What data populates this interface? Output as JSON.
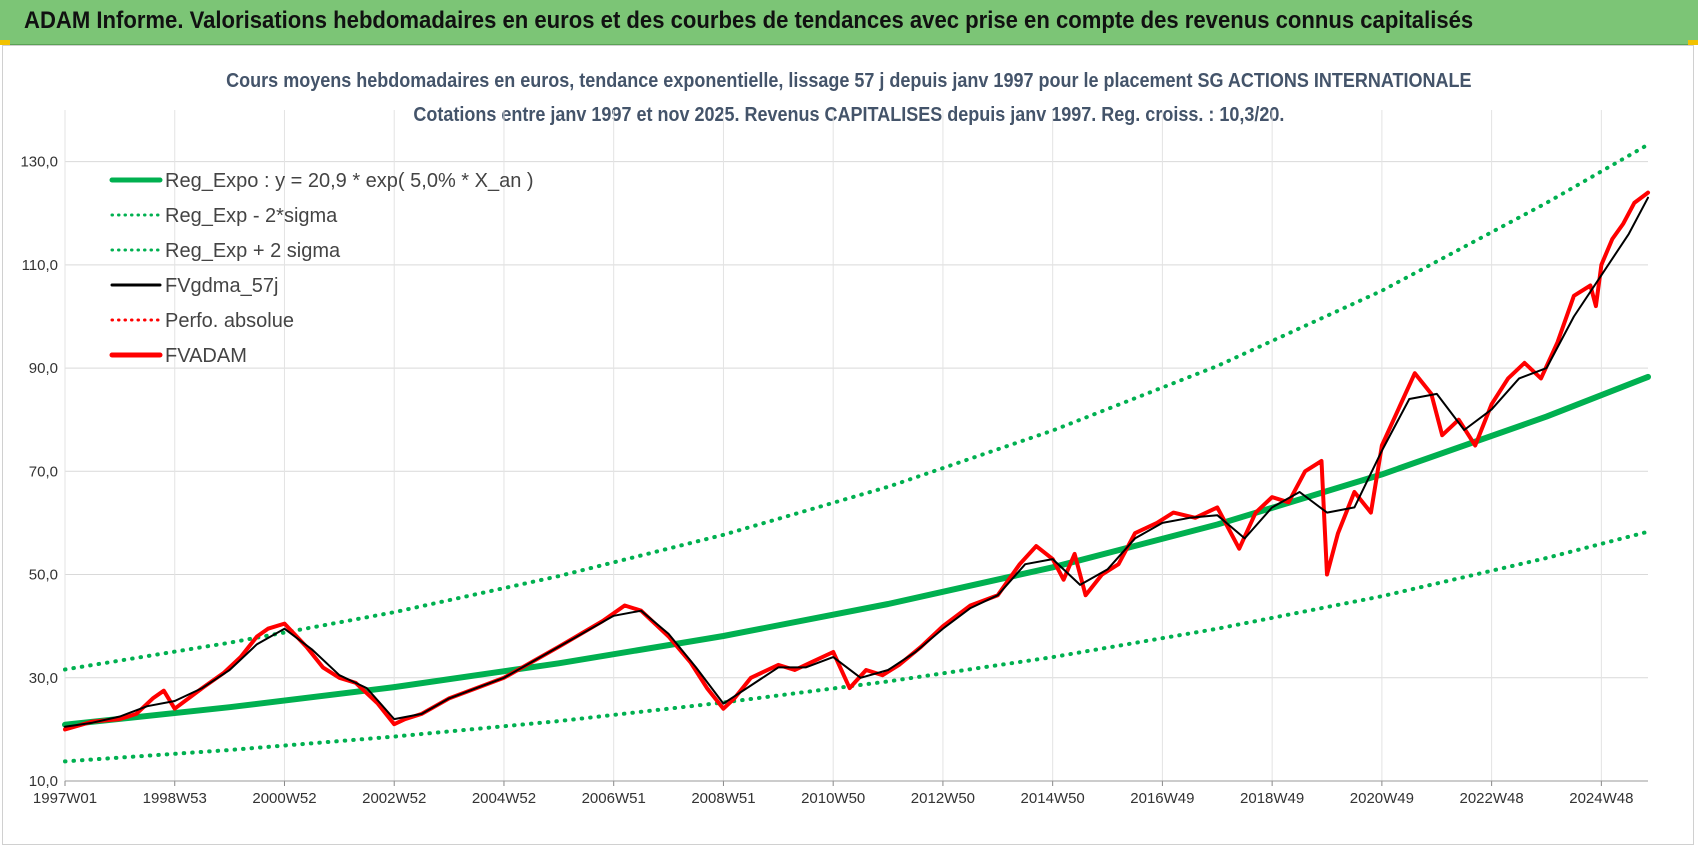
{
  "header": {
    "banner_title": "ADAM Informe. Valorisations hebdomadaires en euros et des courbes de tendances avec prise en compte des revenus connus capitalisés"
  },
  "colors": {
    "banner": "#7cc576",
    "reg": "#00b050",
    "smooth": "#000000",
    "price": "#ff0000",
    "perfo": "#ff0000",
    "title": "#44546a"
  },
  "chart_data": {
    "type": "line",
    "title": "Cours moyens hebdomadaires en euros, tendance exponentielle, lissage 57 j depuis janv 1997  pour le placement SG ACTIONS INTERNATIONALE",
    "subtitle": "Cotations entre janv 1997 et nov 2025. Revenus CAPITALISES depuis janv 1997. Reg. croiss. : 10,3/20.",
    "ylim": [
      10,
      140
    ],
    "xlim": [
      1997.0,
      2025.85
    ],
    "y_ticks": [
      "130,0",
      "110,0",
      "90,0",
      "70,0",
      "50,0",
      "30,0",
      "10,0"
    ],
    "y_tick_values": [
      130,
      110,
      90,
      70,
      50,
      30,
      10
    ],
    "x_ticks": [
      "1997W01",
      "1998W53",
      "2000W52",
      "2002W52",
      "2004W52",
      "2006W51",
      "2008W51",
      "2010W50",
      "2012W50",
      "2014W50",
      "2016W49",
      "2018W49",
      "2020W49",
      "2022W48",
      "2024W48"
    ],
    "x_tick_values": [
      1997.0,
      1999.0,
      2001.0,
      2003.0,
      2005.0,
      2007.0,
      2009.0,
      2011.0,
      2013.0,
      2015.0,
      2017.0,
      2019.0,
      2021.0,
      2023.0,
      2025.0
    ],
    "legend": [
      {
        "key": "reg",
        "label": "Reg_Expo : y = 20,9 * exp( 5,0% *  X_an )",
        "style": "solid-thick",
        "color": "#00b050"
      },
      {
        "key": "minus",
        "label": "Reg_Exp - 2*sigma",
        "style": "dotted",
        "color": "#00b050"
      },
      {
        "key": "plus",
        "label": "Reg_Exp + 2 sigma",
        "style": "dotted",
        "color": "#00b050"
      },
      {
        "key": "smooth",
        "label": "FVgdma_57j",
        "style": "solid",
        "color": "#000000"
      },
      {
        "key": "perfo",
        "label": "Perfo. absolue",
        "style": "dotted",
        "color": "#ff0000"
      },
      {
        "key": "price",
        "label": "FVADAM",
        "style": "solid-thick",
        "color": "#ff0000"
      }
    ],
    "series": [
      {
        "name": "Reg_Expo",
        "x": [
          1997.0,
          2000.0,
          2003.0,
          2006.0,
          2009.0,
          2012.0,
          2015.0,
          2018.0,
          2021.0,
          2024.0,
          2025.85
        ],
        "values": [
          20.9,
          24.3,
          28.2,
          32.8,
          38.1,
          44.3,
          51.4,
          59.7,
          69.4,
          80.6,
          88.3
        ]
      },
      {
        "name": "Reg_Exp - 2*sigma",
        "x": [
          1997.0,
          2000.0,
          2003.0,
          2006.0,
          2009.0,
          2012.0,
          2015.0,
          2018.0,
          2021.0,
          2024.0,
          2025.85
        ],
        "values": [
          13.8,
          16.0,
          18.6,
          21.6,
          25.2,
          29.3,
          34.0,
          39.5,
          45.8,
          53.2,
          58.3
        ]
      },
      {
        "name": "Reg_Exp + 2 sigma",
        "x": [
          1997.0,
          2000.0,
          2003.0,
          2006.0,
          2009.0,
          2012.0,
          2015.0,
          2018.0,
          2021.0,
          2024.0,
          2025.85
        ],
        "values": [
          31.6,
          36.8,
          42.7,
          49.7,
          57.7,
          67.0,
          77.9,
          90.4,
          105.0,
          122.0,
          133.3
        ]
      },
      {
        "name": "FVADAM",
        "x": [
          1997.0,
          1997.5,
          1998.0,
          1998.3,
          1998.6,
          1998.8,
          1999.0,
          1999.5,
          1999.9,
          2000.2,
          2000.5,
          2000.7,
          2001.0,
          2001.4,
          2001.7,
          2002.0,
          2002.3,
          2002.7,
          2003.0,
          2003.2,
          2003.5,
          2004.0,
          2004.5,
          2005.0,
          2005.5,
          2006.0,
          2006.4,
          2006.8,
          2007.2,
          2007.5,
          2007.8,
          2008.0,
          2008.4,
          2008.7,
          2009.0,
          2009.2,
          2009.5,
          2010.0,
          2010.3,
          2010.6,
          2011.0,
          2011.3,
          2011.6,
          2011.9,
          2012.2,
          2012.6,
          2013.0,
          2013.5,
          2014.0,
          2014.4,
          2014.7,
          2015.0,
          2015.2,
          2015.4,
          2015.6,
          2015.9,
          2016.2,
          2016.5,
          2016.9,
          2017.2,
          2017.6,
          2018.0,
          2018.4,
          2018.7,
          2019.0,
          2019.3,
          2019.6,
          2019.9,
          2020.0,
          2020.2,
          2020.5,
          2020.8,
          2021.0,
          2021.3,
          2021.6,
          2021.9,
          2022.1,
          2022.4,
          2022.7,
          2023.0,
          2023.3,
          2023.6,
          2023.9,
          2024.2,
          2024.5,
          2024.8,
          2024.9,
          2025.0,
          2025.2,
          2025.4,
          2025.6,
          2025.85
        ],
        "values": [
          20.0,
          21.5,
          22.0,
          23.0,
          26.0,
          27.5,
          24.0,
          28.0,
          31.0,
          34.0,
          38.0,
          39.5,
          40.5,
          36.0,
          32.0,
          30.0,
          29.0,
          25.0,
          21.0,
          22.0,
          23.0,
          26.0,
          28.0,
          30.0,
          33.0,
          36.0,
          38.5,
          41.0,
          44.0,
          43.0,
          40.0,
          38.0,
          33.0,
          28.0,
          24.0,
          26.0,
          30.0,
          32.5,
          31.5,
          33.0,
          35.0,
          28.0,
          31.5,
          30.5,
          32.5,
          36.0,
          40.0,
          44.0,
          46.0,
          52.0,
          55.5,
          53.0,
          49.0,
          54.0,
          46.0,
          50.0,
          52.0,
          58.0,
          60.0,
          62.0,
          61.0,
          63.0,
          55.0,
          62.0,
          65.0,
          64.0,
          70.0,
          72.0,
          50.0,
          58.0,
          66.0,
          62.0,
          75.0,
          82.0,
          89.0,
          85.0,
          77.0,
          80.0,
          75.0,
          83.0,
          88.0,
          91.0,
          88.0,
          95.0,
          104.0,
          106.0,
          102.0,
          110.0,
          115.0,
          118.0,
          122.0,
          124.0
        ]
      },
      {
        "name": "FVgdma_57j",
        "x": [
          1997.0,
          1997.5,
          1998.0,
          1998.5,
          1999.0,
          1999.5,
          2000.0,
          2000.5,
          2001.0,
          2001.5,
          2002.0,
          2002.5,
          2003.0,
          2003.5,
          2004.0,
          2004.5,
          2005.0,
          2005.5,
          2006.0,
          2006.5,
          2007.0,
          2007.5,
          2008.0,
          2008.5,
          2009.0,
          2009.5,
          2010.0,
          2010.5,
          2011.0,
          2011.5,
          2012.0,
          2012.5,
          2013.0,
          2013.5,
          2014.0,
          2014.5,
          2015.0,
          2015.5,
          2016.0,
          2016.5,
          2017.0,
          2017.5,
          2018.0,
          2018.5,
          2019.0,
          2019.5,
          2020.0,
          2020.5,
          2021.0,
          2021.5,
          2022.0,
          2022.5,
          2023.0,
          2023.5,
          2024.0,
          2024.5,
          2025.0,
          2025.5,
          2025.85
        ],
        "values": [
          20.5,
          21.3,
          22.5,
          24.5,
          25.5,
          28.0,
          31.5,
          36.5,
          39.5,
          35.5,
          30.5,
          28.0,
          22.0,
          23.0,
          26.0,
          28.0,
          30.0,
          33.0,
          36.0,
          39.0,
          42.0,
          43.0,
          38.5,
          32.0,
          25.0,
          28.5,
          32.0,
          32.0,
          34.0,
          30.0,
          31.5,
          35.0,
          39.5,
          43.5,
          46.0,
          52.0,
          53.0,
          48.0,
          51.0,
          57.0,
          60.0,
          61.0,
          61.5,
          57.0,
          63.0,
          66.0,
          62.0,
          63.0,
          74.0,
          84.0,
          85.0,
          78.0,
          82.0,
          88.0,
          90.0,
          100.0,
          108.0,
          116.0,
          123.0
        ]
      }
    ]
  }
}
